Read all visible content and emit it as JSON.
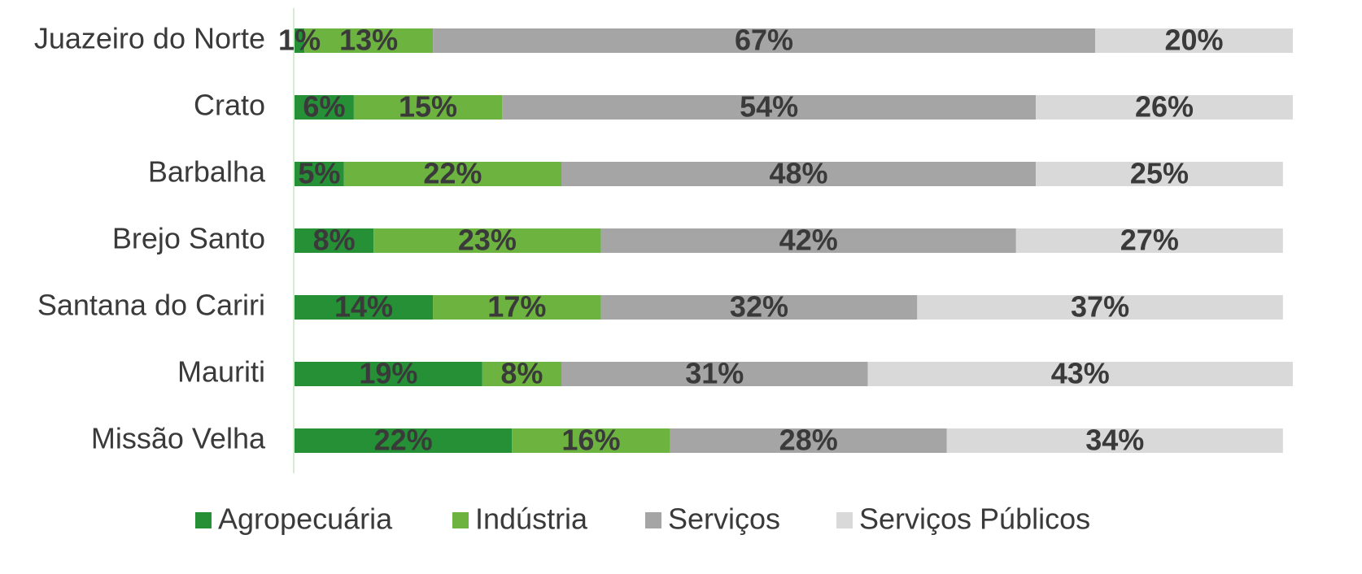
{
  "chart_data": {
    "type": "stacked_bar_horizontal",
    "categories": [
      "Juazeiro do Norte",
      "Crato",
      "Barbalha",
      "Brejo Santo",
      "Santana do Cariri",
      "Mauriti",
      "Missão Velha"
    ],
    "xlim": [
      0,
      108
    ],
    "series": [
      {
        "name": "Agropecuária",
        "color": "#259036",
        "values": [
          1,
          6,
          5,
          8,
          14,
          19,
          22
        ],
        "value_labels": [
          "1%",
          "6%",
          "5%",
          "8%",
          "14%",
          "19%",
          "22%"
        ]
      },
      {
        "name": "Indústria",
        "color": "#6db33f",
        "values": [
          13,
          15,
          22,
          23,
          17,
          8,
          16
        ],
        "value_labels": [
          "13%",
          "15%",
          "22%",
          "23%",
          "17%",
          "8%",
          "16%"
        ]
      },
      {
        "name": "Serviços",
        "color": "#a5a5a5",
        "values": [
          67,
          54,
          48,
          42,
          32,
          31,
          28
        ],
        "value_labels": [
          "67%",
          "54%",
          "48%",
          "42%",
          "32%",
          "31%",
          "28%"
        ]
      },
      {
        "name": "Serviços Públicos",
        "color": "#d9d9d9",
        "values": [
          20,
          26,
          25,
          27,
          37,
          43,
          34
        ],
        "value_labels": [
          "20%",
          "26%",
          "25%",
          "27%",
          "37%",
          "43%",
          "34%"
        ]
      }
    ],
    "legend": "bottom"
  }
}
